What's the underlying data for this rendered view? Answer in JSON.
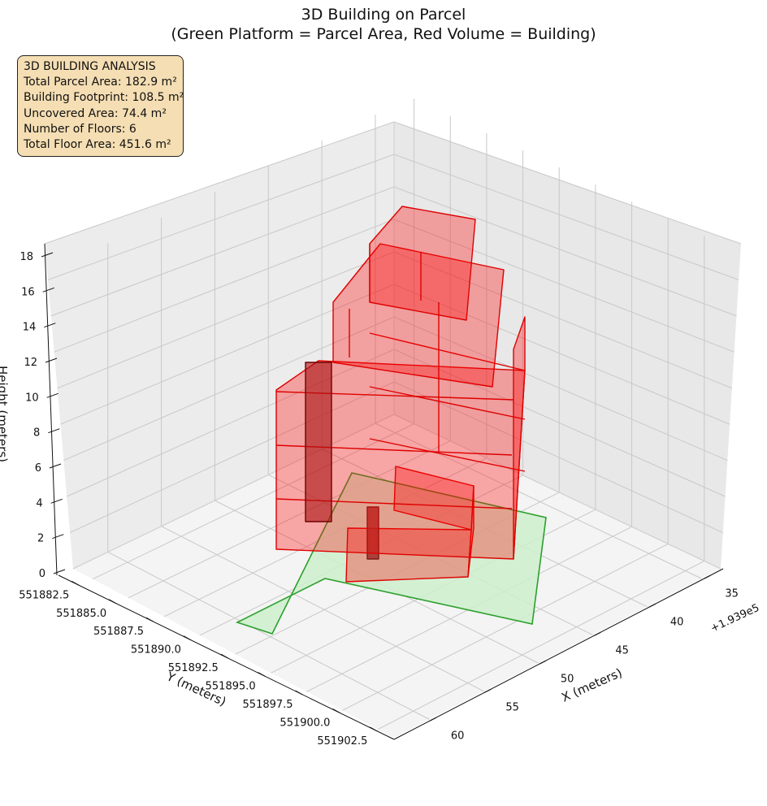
{
  "chart_data": {
    "type": "3d-polygons",
    "title_line1": "3D Building on Parcel",
    "title_line2": "(Green Platform = Parcel Area, Red Volume = Building)",
    "xlabel": "X (meters)",
    "ylabel": "Y (meters)",
    "zlabel": "Height (meters)",
    "x_offset_label": "+1.939e5",
    "x_ticks": [
      "35",
      "40",
      "45",
      "50",
      "55",
      "60"
    ],
    "y_ticks": [
      "551882.5",
      "551885.0",
      "551887.5",
      "551890.0",
      "551892.5",
      "551895.0",
      "551897.5",
      "551900.0",
      "551902.5"
    ],
    "z_ticks": [
      "0",
      "2",
      "4",
      "6",
      "8",
      "10",
      "12",
      "14",
      "16",
      "18"
    ],
    "zlim": [
      0,
      18
    ],
    "grid": true,
    "colors": {
      "parcel_fill": "#d4f1d4",
      "parcel_edge": "#2ca02c",
      "building_fill": "#ff0000",
      "building_edge": "#e00000",
      "pane": "#f2f2f2"
    },
    "series": [
      {
        "name": "Green Platform = Parcel Area"
      },
      {
        "name": "Red Volume = Building"
      }
    ],
    "info_box": {
      "heading": "3D BUILDING ANALYSIS",
      "lines": [
        "Total Parcel Area: 182.9 m²",
        "Building Footprint: 108.5 m²",
        "Uncovered Area: 74.4 m²",
        "Number of Floors: 6",
        "Total Floor Area: 451.6 m²"
      ]
    }
  }
}
